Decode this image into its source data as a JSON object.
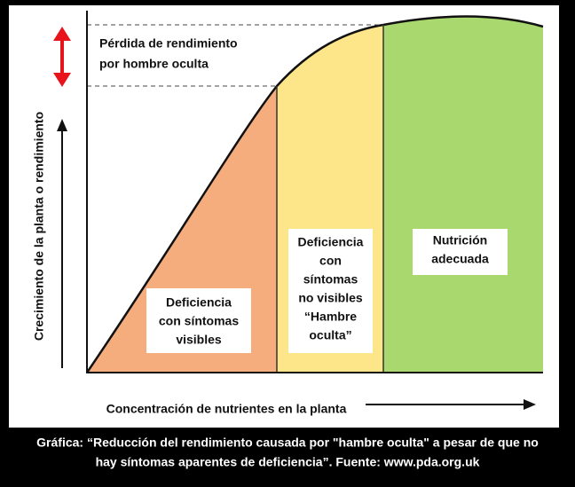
{
  "loss_label": [
    "Pérdida de rendimiento",
    "por hombre oculta"
  ],
  "y_axis_label": "Crecimiento de la planta o rendimiento",
  "x_axis_label": "Concentración de nutrientes en la planta",
  "regions": [
    {
      "lines": [
        "Deficiencia",
        "con síntomas",
        "visibles"
      ]
    },
    {
      "lines": [
        "Deficiencia",
        "con",
        "síntomas",
        "no visibles",
        "“Hambre",
        "oculta”"
      ]
    },
    {
      "lines": [
        "Nutrición",
        "adecuada"
      ]
    }
  ],
  "caption": [
    "Gráfica: “Reducción del rendimiento causada por \"hambre oculta\" a pesar de que no",
    "hay síntomas aparentes de deficiencia”. Fuente: www.pda.org.uk"
  ]
}
